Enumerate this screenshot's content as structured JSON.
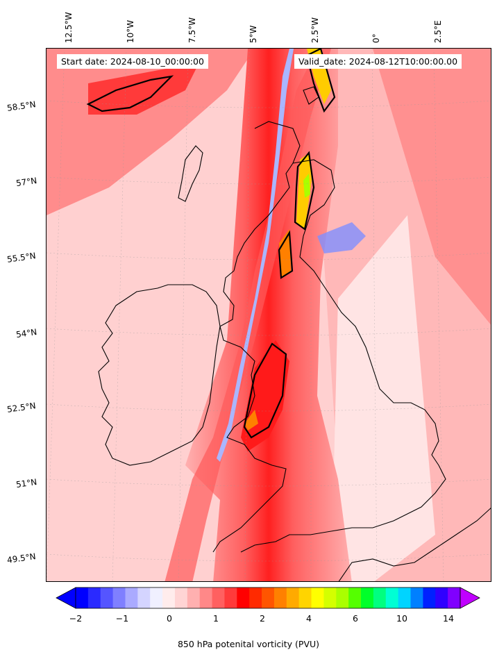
{
  "map": {
    "start_label": "Start date: 2024-08-10_00:00:00",
    "valid_label": "Valid_date: 2024-08-12T10:00:00.00",
    "lon_ticks": [
      "12.5°W",
      "10°W",
      "7.5°W",
      "5°W",
      "2.5°W",
      "0°",
      "2.5°E"
    ],
    "lat_ticks": [
      "58.5°N",
      "57°N",
      "55.5°N",
      "54°N",
      "52.5°N",
      "51°N",
      "49.5°N"
    ],
    "field": "850 hPa potential vorticity",
    "colors": {
      "background_low": "#ffd6d6",
      "mid": "#ff7a7a",
      "high": "#ff1a1a",
      "max": "#ff9900",
      "negative": "#8aa0ff",
      "coast": "#000000"
    }
  },
  "colorbar": {
    "title": "850 hPa potenital vorticity (PVU)",
    "ticks": [
      "−2",
      "−1",
      "0",
      "1",
      "2",
      "4",
      "6",
      "10",
      "14"
    ],
    "colors": [
      "#0000ff",
      "#2a2aff",
      "#5555ff",
      "#7f7fff",
      "#aaaaff",
      "#d4d4ff",
      "#f0f0ff",
      "#ffecec",
      "#ffd4d4",
      "#ffb0b0",
      "#ff8888",
      "#ff6060",
      "#ff3a3a",
      "#ff0000",
      "#ff2a00",
      "#ff5500",
      "#ff8000",
      "#ffaa00",
      "#ffd400",
      "#ffff00",
      "#d4ff00",
      "#aaff00",
      "#55ff00",
      "#00ff2a",
      "#00ff80",
      "#00ffd4",
      "#00d4ff",
      "#0080ff",
      "#0020ff",
      "#3000ff",
      "#8000ff"
    ],
    "extend_low": "#0000ff",
    "extend_high": "#c000ff"
  }
}
